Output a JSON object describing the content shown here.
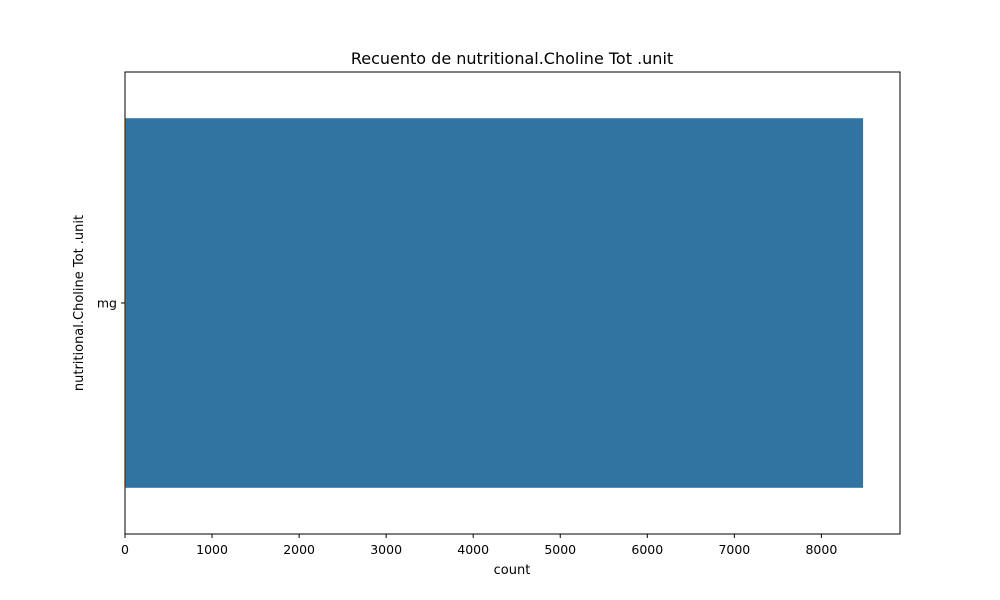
{
  "chart_data": {
    "type": "bar",
    "orientation": "horizontal",
    "title": "Recuento de nutritional.Choline Tot .unit",
    "xlabel": "count",
    "ylabel": "nutritional.Choline Tot .unit",
    "categories": [
      "mg"
    ],
    "values": [
      8479
    ],
    "xlim": [
      0,
      8903
    ],
    "x_ticks": [
      "0",
      "1000",
      "2000",
      "3000",
      "4000",
      "5000",
      "6000",
      "7000",
      "8000"
    ],
    "grid": false,
    "bar_color": "#3274a1",
    "bar_edge_color": "#d9822b"
  }
}
